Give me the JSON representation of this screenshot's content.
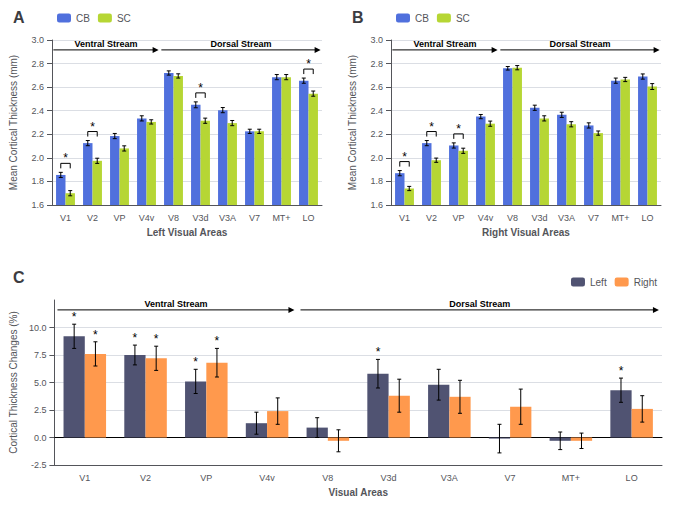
{
  "chart_data": [
    {
      "type": "bar",
      "title": "A",
      "xlabel": "Left Visual Areas",
      "ylabel": "Mean Cortical Thickness (mm)",
      "categories": [
        "V1",
        "V2",
        "VP",
        "V4v",
        "V8",
        "V3d",
        "V3A",
        "V7",
        "MT+",
        "LO"
      ],
      "series": [
        {
          "name": "CB",
          "values": [
            1.855,
            2.125,
            2.185,
            2.335,
            2.72,
            2.45,
            2.405,
            2.225,
            2.685,
            2.655
          ],
          "errors": [
            0.022,
            0.022,
            0.022,
            0.022,
            0.018,
            0.025,
            0.022,
            0.018,
            0.022,
            0.022
          ]
        },
        {
          "name": "SC",
          "values": [
            1.7,
            1.975,
            2.08,
            2.305,
            2.695,
            2.315,
            2.295,
            2.225,
            2.685,
            2.545
          ],
          "errors": [
            0.022,
            0.022,
            0.022,
            0.018,
            0.018,
            0.022,
            0.022,
            0.018,
            0.022,
            0.022
          ]
        }
      ],
      "ylim": [
        1.6,
        3.0
      ],
      "yticks": [
        1.6,
        1.8,
        {
          "value": 2.0,
          "label": "2.0"
        },
        2.2,
        2.4,
        2.6,
        2.8,
        {
          "value": 3.0,
          "label": "3.0"
        }
      ],
      "grid": true,
      "legend": "upper left",
      "annotations": [
        {
          "text": "Ventral Stream",
          "from": "V1",
          "to": "V4v"
        },
        {
          "text": "Dorsal Stream",
          "from": "V8",
          "to": "LO"
        },
        {
          "text": "*",
          "category": "V1"
        },
        {
          "text": "*",
          "category": "V2"
        },
        {
          "text": "*",
          "category": "V3d"
        },
        {
          "text": "*",
          "category": "LO"
        }
      ]
    },
    {
      "type": "bar",
      "title": "B",
      "xlabel": "Right Visual Areas",
      "ylabel": "Mean Cortical Thickness (mm)",
      "categories": [
        "V1",
        "V2",
        "VP",
        "V4v",
        "V8",
        "V3d",
        "V3A",
        "V7",
        "MT+",
        "LO"
      ],
      "series": [
        {
          "name": "CB",
          "values": [
            1.87,
            2.125,
            2.105,
            2.35,
            2.76,
            2.425,
            2.365,
            2.275,
            2.655,
            2.69
          ],
          "errors": [
            0.022,
            0.022,
            0.022,
            0.018,
            0.015,
            0.022,
            0.022,
            0.022,
            0.022,
            0.022
          ]
        },
        {
          "name": "SC",
          "values": [
            1.74,
            1.98,
            2.06,
            2.29,
            2.765,
            2.335,
            2.285,
            2.21,
            2.665,
            2.605
          ],
          "errors": [
            0.018,
            0.018,
            0.022,
            0.022,
            0.018,
            0.022,
            0.022,
            0.018,
            0.018,
            0.025
          ]
        }
      ],
      "ylim": [
        1.6,
        3.0
      ],
      "yticks": [
        1.6,
        1.8,
        {
          "value": 2.0,
          "label": "2.0"
        },
        2.2,
        2.4,
        2.6,
        2.8,
        {
          "value": 3.0,
          "label": "3.0"
        }
      ],
      "grid": true,
      "legend": "upper left",
      "annotations": [
        {
          "text": "Ventral Stream",
          "from": "V1",
          "to": "V4v"
        },
        {
          "text": "Dorsal Stream",
          "from": "V8",
          "to": "LO"
        },
        {
          "text": "*",
          "category": "V1"
        },
        {
          "text": "*",
          "category": "V2"
        },
        {
          "text": "*",
          "category": "VP"
        }
      ]
    },
    {
      "type": "bar",
      "title": "C",
      "xlabel": "Visual Areas",
      "ylabel": "Cortical Thickness Changes (%)",
      "categories": [
        "V1",
        "V2",
        "VP",
        "V4v",
        "V8",
        "V3d",
        "V3A",
        "V7",
        "MT+",
        "LO"
      ],
      "series": [
        {
          "name": "Left",
          "values": [
            9.2,
            7.5,
            5.1,
            1.3,
            0.9,
            5.8,
            4.8,
            -0.1,
            -0.3,
            4.3
          ],
          "errors": [
            1.1,
            0.9,
            1.1,
            1.0,
            0.9,
            1.3,
            1.4,
            1.3,
            0.8,
            1.1
          ]
        },
        {
          "name": "Right",
          "values": [
            7.6,
            7.2,
            6.8,
            2.4,
            -0.3,
            3.8,
            3.7,
            2.8,
            -0.3,
            2.6
          ],
          "errors": [
            1.1,
            1.1,
            1.3,
            1.2,
            1.0,
            1.5,
            1.5,
            1.6,
            0.7,
            1.2
          ]
        }
      ],
      "ylim": [
        -2.5,
        12.5
      ],
      "yticks": [
        -2.5,
        {
          "value": 0.0,
          "label": "0.0"
        },
        2.5,
        {
          "value": 5.0,
          "label": "5.0"
        },
        7.5,
        {
          "value": 10.0,
          "label": "10.0"
        }
      ],
      "grid": true,
      "legend": "upper right",
      "annotations": [
        {
          "text": "Ventral Stream",
          "from": "V1",
          "to": "V4v"
        },
        {
          "text": "Dorsal Stream",
          "from": "V8",
          "to": "LO"
        },
        {
          "text": "*",
          "category": "V1",
          "series": "Left"
        },
        {
          "text": "*",
          "category": "V2",
          "series": "Left"
        },
        {
          "text": "*",
          "category": "VP",
          "series": "Left"
        },
        {
          "text": "*",
          "category": "V3d",
          "series": "Left"
        },
        {
          "text": "*",
          "category": "LO",
          "series": "Left"
        },
        {
          "text": "*",
          "category": "V1",
          "series": "Right"
        },
        {
          "text": "*",
          "category": "V2",
          "series": "Right"
        },
        {
          "text": "*",
          "category": "VP",
          "series": "Right"
        }
      ]
    }
  ]
}
